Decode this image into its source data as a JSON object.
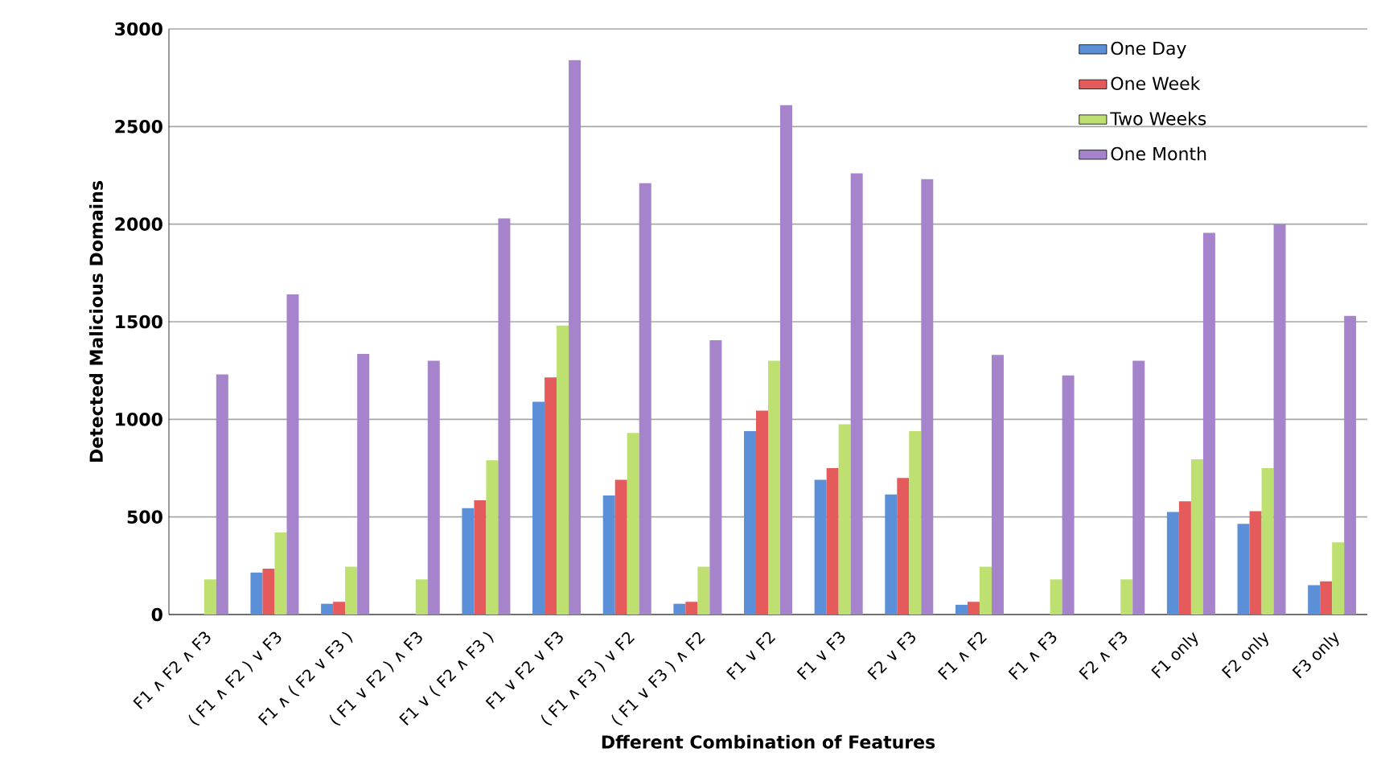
{
  "chart_data": {
    "type": "bar",
    "xlabel": "Dfferent Combination of Features",
    "ylabel": "Detected Malicious Domains",
    "categories": [
      "F1 ∧ F2 ∧ F3",
      "( F1 ∧ F2 ) ∨ F3",
      "F1 ∧ ( F2 ∨ F3 )",
      "( F1 ∨ F2 ) ∧ F3",
      "F1 ∨ ( F2 ∧ F3 )",
      "F1 ∨ F2 ∨ F3",
      "( F1 ∧ F3 ) ∨ F2",
      "( F1 ∨ F3 ) ∧ F2",
      "F1 ∨ F2",
      "F1 ∨ F3",
      "F2 ∨ F3",
      "F1 ∧ F2",
      "F1 ∧ F3",
      "F2 ∧ F3",
      "F1 only",
      "F2 only",
      "F3 only"
    ],
    "series": [
      {
        "name": "One Day",
        "color": "#5b8fd8",
        "values": [
          0,
          215,
          55,
          0,
          545,
          1090,
          610,
          55,
          940,
          690,
          615,
          50,
          0,
          0,
          525,
          465,
          150
        ]
      },
      {
        "name": "One Week",
        "color": "#e55a5a",
        "values": [
          0,
          235,
          65,
          0,
          585,
          1215,
          690,
          65,
          1045,
          750,
          700,
          65,
          0,
          0,
          580,
          530,
          170
        ]
      },
      {
        "name": "Two Weeks",
        "color": "#bde070",
        "values": [
          180,
          420,
          245,
          180,
          790,
          1480,
          930,
          245,
          1300,
          975,
          940,
          245,
          180,
          180,
          795,
          750,
          370
        ]
      },
      {
        "name": "One Month",
        "color": "#a584cc",
        "values": [
          1230,
          1640,
          1335,
          1300,
          2030,
          2840,
          2210,
          1405,
          2610,
          2260,
          2230,
          1330,
          1225,
          1300,
          1955,
          2000,
          1530
        ]
      }
    ],
    "ylim": [
      0,
      3000
    ],
    "yticks": [
      0,
      500,
      1000,
      1500,
      2000,
      2500,
      3000
    ],
    "grid": "y",
    "legend": "top right"
  }
}
